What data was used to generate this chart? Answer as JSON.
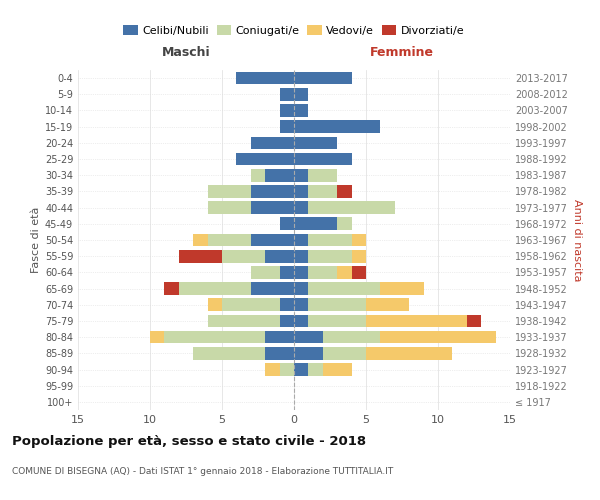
{
  "age_groups": [
    "100+",
    "95-99",
    "90-94",
    "85-89",
    "80-84",
    "75-79",
    "70-74",
    "65-69",
    "60-64",
    "55-59",
    "50-54",
    "45-49",
    "40-44",
    "35-39",
    "30-34",
    "25-29",
    "20-24",
    "15-19",
    "10-14",
    "5-9",
    "0-4"
  ],
  "birth_years": [
    "≤ 1917",
    "1918-1922",
    "1923-1927",
    "1928-1932",
    "1933-1937",
    "1938-1942",
    "1943-1947",
    "1948-1952",
    "1953-1957",
    "1958-1962",
    "1963-1967",
    "1968-1972",
    "1973-1977",
    "1978-1982",
    "1983-1987",
    "1988-1992",
    "1993-1997",
    "1998-2002",
    "2003-2007",
    "2008-2012",
    "2013-2017"
  ],
  "males": {
    "celibi": [
      0,
      0,
      0,
      2,
      2,
      1,
      1,
      3,
      1,
      2,
      3,
      1,
      3,
      3,
      2,
      4,
      3,
      1,
      1,
      1,
      4
    ],
    "coniugati": [
      0,
      0,
      1,
      5,
      7,
      5,
      4,
      5,
      2,
      3,
      3,
      0,
      3,
      3,
      1,
      0,
      0,
      0,
      0,
      0,
      0
    ],
    "vedovi": [
      0,
      0,
      1,
      0,
      1,
      0,
      1,
      0,
      0,
      0,
      1,
      0,
      0,
      0,
      0,
      0,
      0,
      0,
      0,
      0,
      0
    ],
    "divorziati": [
      0,
      0,
      0,
      0,
      0,
      0,
      0,
      1,
      0,
      3,
      0,
      0,
      0,
      0,
      0,
      0,
      0,
      0,
      0,
      0,
      0
    ]
  },
  "females": {
    "nubili": [
      0,
      0,
      1,
      2,
      2,
      1,
      1,
      1,
      1,
      1,
      1,
      3,
      1,
      1,
      1,
      4,
      3,
      6,
      1,
      1,
      4
    ],
    "coniugate": [
      0,
      0,
      1,
      3,
      4,
      4,
      4,
      5,
      2,
      3,
      3,
      1,
      6,
      2,
      2,
      0,
      0,
      0,
      0,
      0,
      0
    ],
    "vedove": [
      0,
      0,
      2,
      6,
      8,
      7,
      3,
      3,
      1,
      1,
      1,
      0,
      0,
      0,
      0,
      0,
      0,
      0,
      0,
      0,
      0
    ],
    "divorziate": [
      0,
      0,
      0,
      0,
      0,
      1,
      0,
      0,
      1,
      0,
      0,
      0,
      0,
      1,
      0,
      0,
      0,
      0,
      0,
      0,
      0
    ]
  },
  "colors": {
    "celibi": "#4472a8",
    "coniugati": "#c8d9a8",
    "vedovi": "#f5c96a",
    "divorziati": "#c0392b"
  },
  "xlim": 15,
  "title": "Popolazione per età, sesso e stato civile - 2018",
  "subtitle": "COMUNE DI BISEGNA (AQ) - Dati ISTAT 1° gennaio 2018 - Elaborazione TUTTITALIA.IT",
  "ylabel_left": "Fasce di età",
  "ylabel_right": "Anni di nascita",
  "xlabel_left": "Maschi",
  "xlabel_right": "Femmine",
  "bg_color": "#ffffff",
  "grid_color": "#dddddd"
}
